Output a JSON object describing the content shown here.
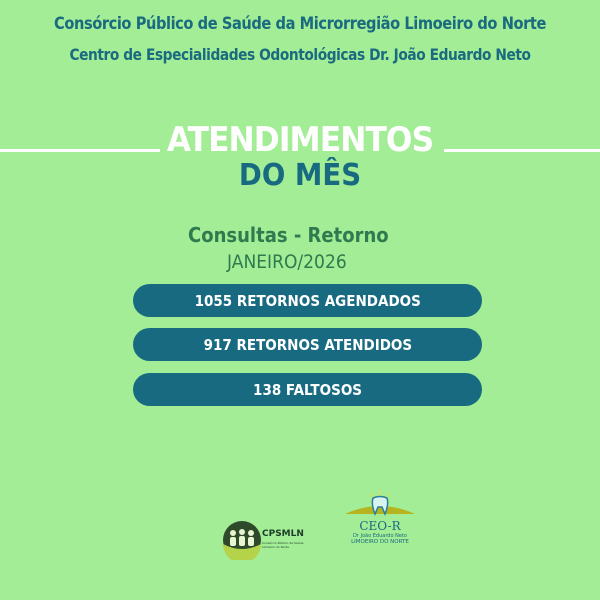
{
  "header": {
    "line1": "Consórcio Público de Saúde da Microrregião Limoeiro do Norte",
    "line2": "Centro de Especialidades Odontológicas Dr. João Eduardo Neto"
  },
  "title": {
    "line1": "ATENDIMENTOS",
    "line2": "DO MÊS"
  },
  "subtitle": {
    "category": "Consultas - Retorno",
    "period": "JANEIRO/2026"
  },
  "stats": [
    {
      "label": "1055 RETORNOS AGENDADOS"
    },
    {
      "label": "917 RETORNOS ATENDIDOS"
    },
    {
      "label": "138 FALTOSOS"
    }
  ],
  "logos": {
    "cpsmln": {
      "text": "CPSMLN",
      "subtext": "Consórcio Público de Saúde Limoeiro do Norte"
    },
    "ceo": {
      "text": "CEO-R",
      "line2": "Dr João Eduardo Neto",
      "line3": "LIMOEIRO DO NORTE"
    }
  },
  "colors": {
    "background": "#a2ed95",
    "primary": "#176a80",
    "secondary": "#2f7a4e"
  }
}
